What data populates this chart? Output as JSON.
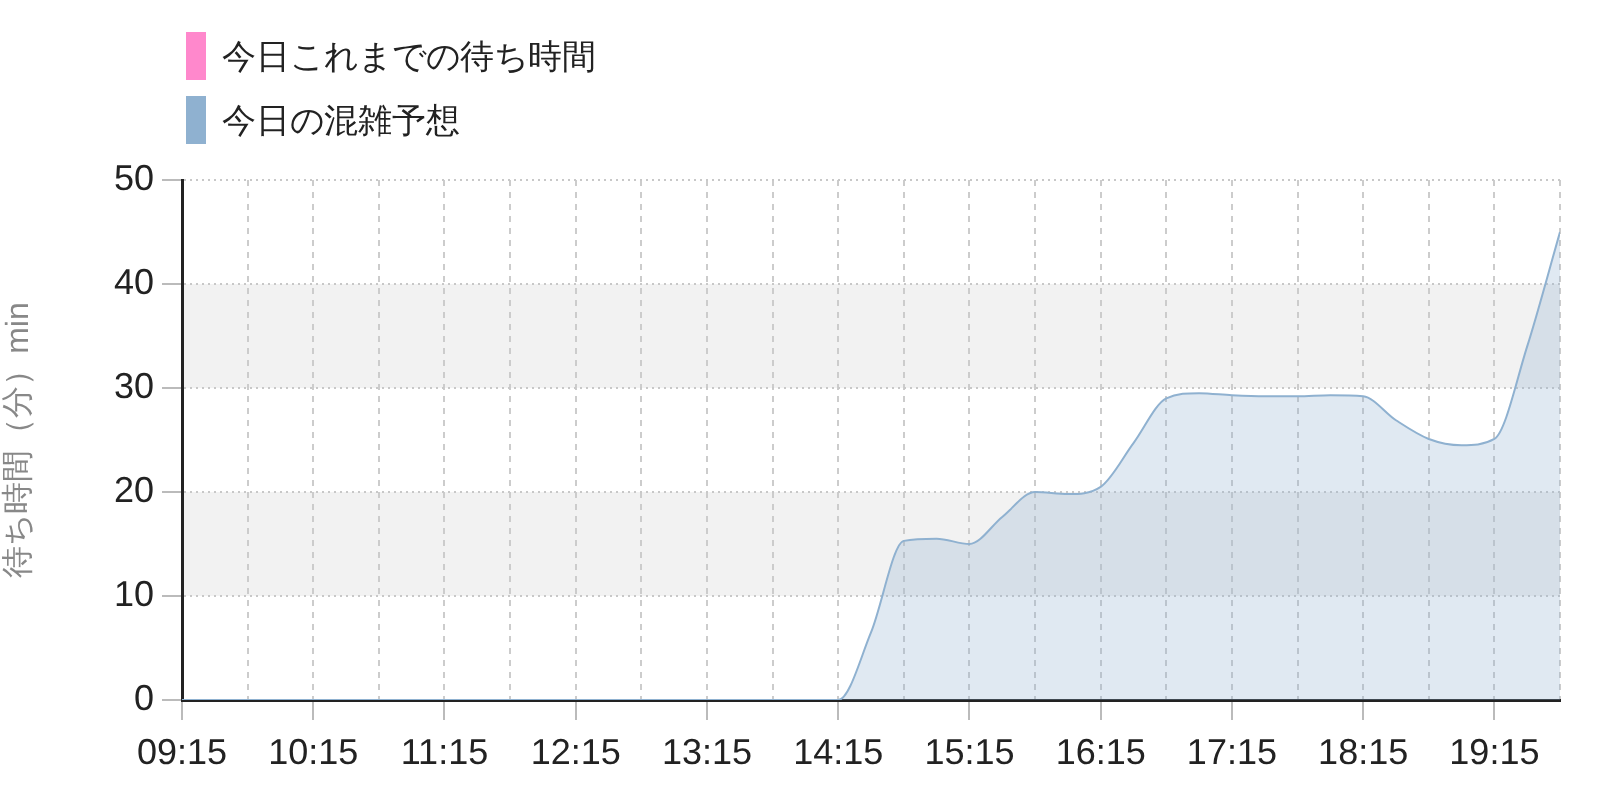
{
  "chart_data": {
    "type": "area",
    "ylabel": "待ち時間（分）min",
    "x": [
      9.25,
      9.5,
      9.75,
      10,
      10.25,
      10.5,
      10.75,
      11,
      11.25,
      11.5,
      11.75,
      12,
      12.25,
      12.5,
      12.75,
      13,
      13.25,
      13.5,
      13.75,
      14,
      14.25,
      14.5,
      14.75,
      15,
      15.25,
      15.5,
      15.75,
      16,
      16.25,
      16.5,
      16.75,
      17,
      17.25,
      17.5,
      17.75,
      18,
      18.25,
      18.5,
      18.75,
      19,
      19.25,
      19.5,
      19.75
    ],
    "series": [
      {
        "name": "今日これまでの待ち時間",
        "color": "#ff88cc",
        "values": [
          null,
          null,
          null,
          null,
          null,
          null,
          null,
          null,
          null,
          null,
          null,
          null,
          null,
          null,
          null,
          null,
          null,
          null,
          null,
          null,
          null,
          null,
          null,
          null,
          null,
          null,
          null,
          null,
          null,
          null,
          null,
          null,
          null,
          null,
          null,
          null,
          null,
          null,
          null,
          null,
          null,
          null,
          null
        ]
      },
      {
        "name": "今日の混雑予想",
        "color": "#8fb1d0",
        "values": [
          0,
          0,
          0,
          0,
          0,
          0,
          0,
          0,
          0,
          0,
          0,
          0,
          0,
          0,
          0,
          0,
          0,
          0,
          0,
          0,
          0,
          6.5,
          15.3,
          15.5,
          15,
          17.6,
          20,
          19.8,
          20.5,
          24.7,
          29,
          29.5,
          29.3,
          29.2,
          29.2,
          29.3,
          29.2,
          26.9,
          25.1,
          24.5,
          25.1,
          34,
          45
        ]
      }
    ],
    "xlim": [
      9.25,
      19.75
    ],
    "xticks": [
      {
        "value": 9.25,
        "label": "09:15"
      },
      {
        "value": 9.75,
        "label": null
      },
      {
        "value": 10.25,
        "label": "10:15"
      },
      {
        "value": 10.75,
        "label": null
      },
      {
        "value": 11.25,
        "label": "11:15"
      },
      {
        "value": 11.75,
        "label": null
      },
      {
        "value": 12.25,
        "label": "12:15"
      },
      {
        "value": 12.75,
        "label": null
      },
      {
        "value": 13.25,
        "label": "13:15"
      },
      {
        "value": 13.75,
        "label": null
      },
      {
        "value": 14.25,
        "label": "14:15"
      },
      {
        "value": 14.75,
        "label": null
      },
      {
        "value": 15.25,
        "label": "15:15"
      },
      {
        "value": 15.75,
        "label": null
      },
      {
        "value": 16.25,
        "label": "16:15"
      },
      {
        "value": 16.75,
        "label": null
      },
      {
        "value": 17.25,
        "label": "17:15"
      },
      {
        "value": 17.75,
        "label": null
      },
      {
        "value": 18.25,
        "label": "18:15"
      },
      {
        "value": 18.75,
        "label": null
      },
      {
        "value": 19.25,
        "label": "19:15"
      },
      {
        "value": 19.75,
        "label": null
      }
    ],
    "ylim": [
      0,
      50
    ],
    "yticks": [
      0,
      10,
      20,
      30,
      40,
      50
    ],
    "bands": [
      {
        "axis": "y",
        "from": 10,
        "to": 20,
        "color": "#f2f2f2"
      },
      {
        "axis": "y",
        "from": 30,
        "to": 40,
        "color": "#f2f2f2"
      }
    ],
    "grid": true,
    "legend": "top left"
  }
}
